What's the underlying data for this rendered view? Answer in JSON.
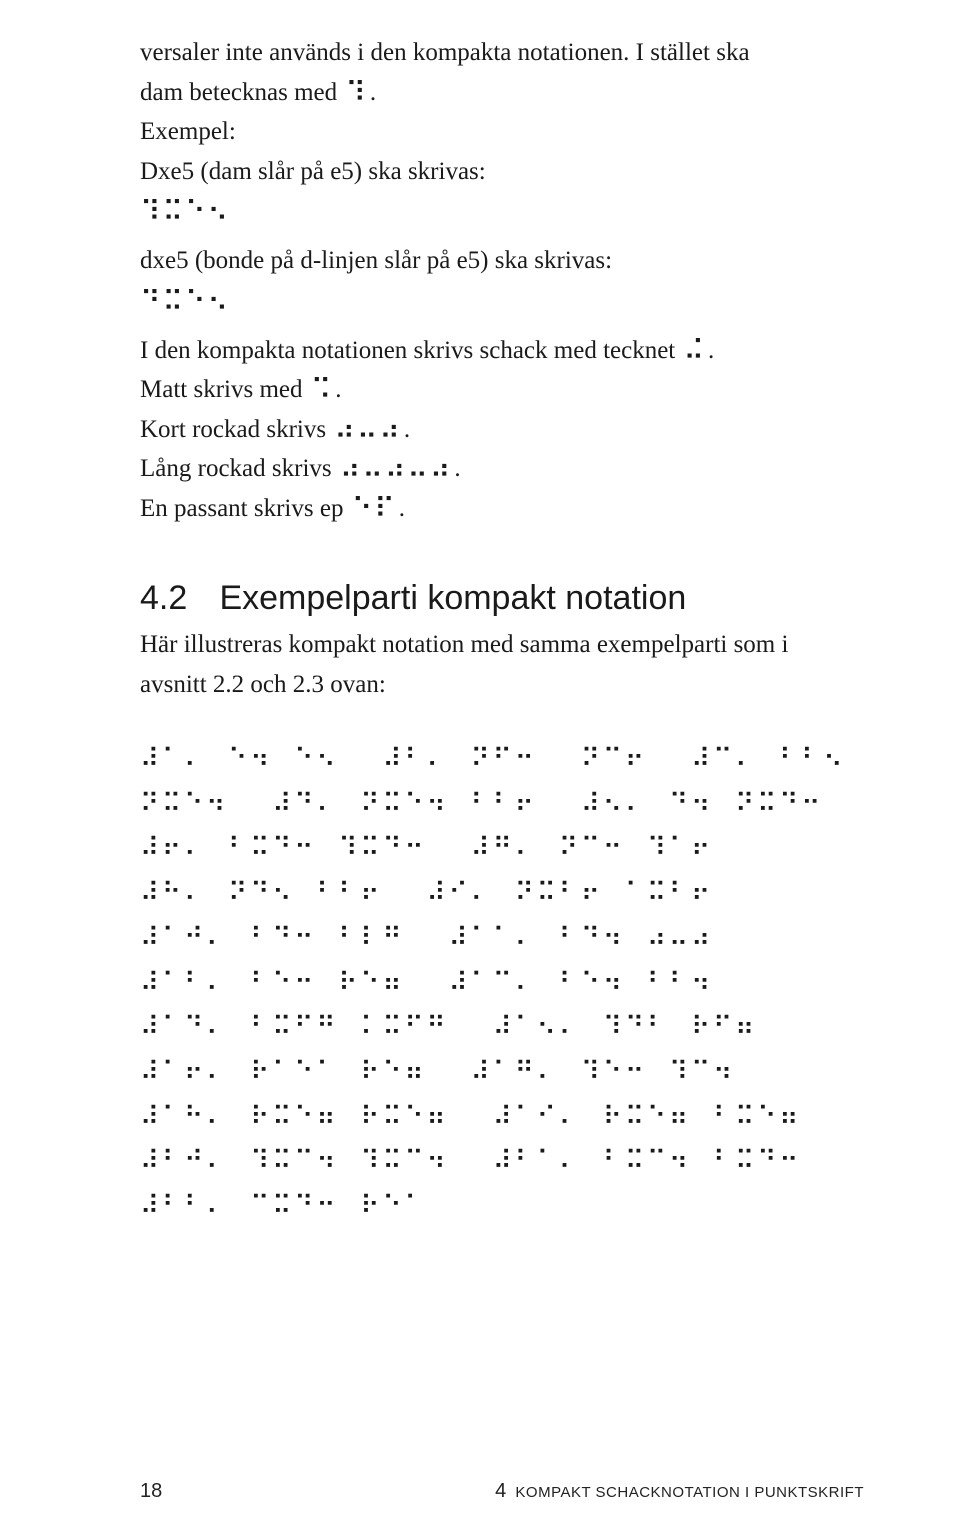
{
  "intro": {
    "line1": "versaler inte används i den kompakta notationen. I stället ska",
    "line2_prefix": "dam betecknas med ",
    "line2_braille": "⠹",
    "line2_suffix": "."
  },
  "example_lead": "Exempel:",
  "ex1_text": "Dxe5 (dam slår på e5) ska skrivas:",
  "ex1_braille": "⠹⠭⠑⠢",
  "ex2_text": "dxe5 (bonde på d-linjen slår på e5) ska skrivas:",
  "ex2_braille": "⠙⠭⠑⠢",
  "rules": {
    "r1_prefix": "I den kompakta notationen skrivs schack med tecknet ",
    "r1_braille": "⠬",
    "r1_suffix": ".",
    "r2_prefix": "Matt skrivs med ",
    "r2_braille": "⠩",
    "r2_suffix": ".",
    "r3_prefix": "Kort rockad skrivs ",
    "r3_braille": "⠴⠤⠴",
    "r3_suffix": ".",
    "r4_prefix": "Lång rockad skrivs ",
    "r4_braille": "⠴⠤⠴⠤⠴",
    "r4_suffix": ".",
    "r5_prefix": "En passant skrivs ep ",
    "r5_braille": "⠑⠏",
    "r5_suffix": "."
  },
  "section": {
    "number": "4.2",
    "title": "Exempelparti kompakt notation"
  },
  "section_body": {
    "line1": "Här illustreras kompakt notation med samma exempelparti som i",
    "line2": "avsnitt 2.2 och 2.3 ovan:"
  },
  "game_rows": [
    "⠼⠁⠄⠀⠑⠲⠀⠑⠢⠀⠀⠼⠃⠄⠀⠝⠋⠒⠀⠀⠝⠉⠖⠀⠀⠼⠉⠄⠀⠃⠃⠢⠀⠀⠀",
    "⠝⠭⠑⠲⠀⠀⠼⠙⠄⠀⠝⠭⠑⠲⠀⠃⠃⠖⠀⠀⠼⠢⠄⠀⠙⠲⠀⠝⠭⠙⠒⠀⠀",
    "⠼⠖⠄⠀⠃⠭⠙⠒⠀⠹⠭⠙⠒⠀⠀⠼⠛⠄⠀⠝⠉⠒⠀⠹⠁⠖⠀⠀⠀⠀⠀⠀⠀⠀",
    "⠼⠓⠄⠀⠝⠙⠢⠀⠃⠃⠖⠀⠀⠼⠊⠄⠀⠝⠭⠃⠖⠀⠁⠭⠃⠖⠀⠀⠀⠀⠀⠀⠀",
    "⠼⠁⠚⠄⠀⠃⠙⠒⠀⠃⠇⠛⠀⠀⠼⠁⠁⠄⠀⠃⠙⠲⠀⠴⠤⠴⠀⠀⠀⠀⠀⠀⠀",
    "⠼⠁⠃⠄⠀⠃⠑⠒⠀⠗⠑⠶⠀⠀⠼⠁⠉⠄⠀⠃⠑⠲⠀⠃⠃⠲⠀⠀⠀⠀⠀⠀⠀",
    "⠼⠁⠙⠄⠀⠃⠭⠋⠛⠀⠅⠭⠋⠛⠀⠀⠼⠁⠢⠄⠀⠹⠙⠃⠀⠗⠋⠶⠀⠀⠀⠀⠀",
    "⠼⠁⠖⠄⠀⠗⠁⠑⠁⠀⠗⠑⠶⠀⠀⠼⠁⠛⠄⠀⠹⠑⠒⠀⠹⠉⠲⠀⠀⠀⠀⠀⠀",
    "⠼⠁⠓⠄⠀⠗⠭⠑⠶⠀⠗⠭⠑⠶⠀⠀⠼⠁⠊⠄⠀⠗⠭⠑⠶⠀⠃⠭⠑⠶⠀⠀⠀",
    "⠼⠃⠚⠄⠀⠹⠭⠉⠲⠀⠹⠭⠉⠲⠀⠀⠼⠃⠁⠄⠀⠃⠭⠉⠲⠀⠃⠭⠙⠒⠀⠀⠀",
    "⠼⠃⠃⠄⠀⠉⠭⠙⠒⠀⠗⠑⠁⠀⠀⠀⠀⠀⠀⠀⠀⠀⠀⠀⠀⠀⠀⠀⠀⠀⠀⠀⠀⠀"
  ],
  "footer": {
    "page_number": "18",
    "chapter_number": "4",
    "chapter_title": "KOMPAKT SCHACKNOTATION I PUNKTSKRIFT"
  },
  "colors": {
    "background": "#ffffff",
    "text": "#1a1a1a"
  }
}
